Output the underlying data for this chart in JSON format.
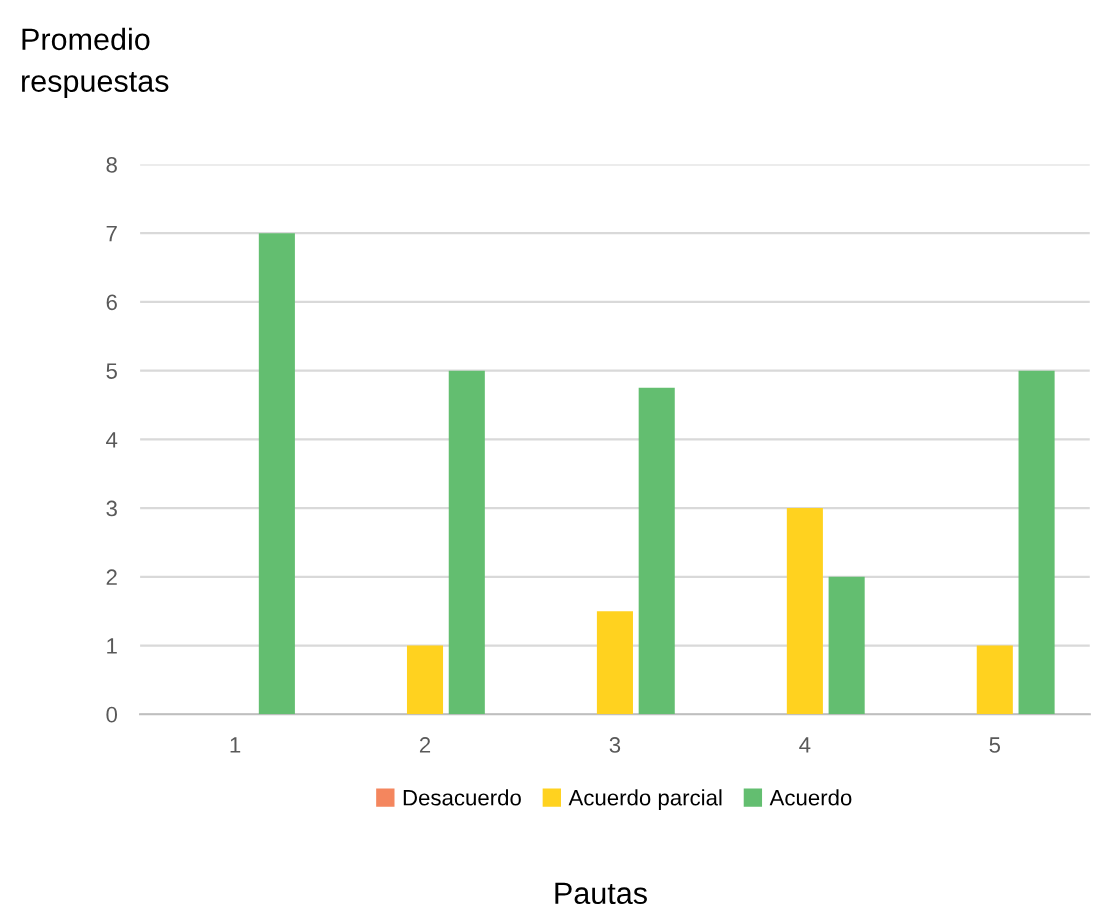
{
  "chart_data": {
    "type": "bar",
    "ylabel": "Promedio\nrespuestas",
    "xlabel": "Pautas",
    "categories": [
      "1",
      "2",
      "3",
      "4",
      "5"
    ],
    "series": [
      {
        "name": "Desacuerdo",
        "color": "#f4865e",
        "values": [
          0,
          0,
          0,
          0,
          0
        ]
      },
      {
        "name": "Acuerdo parcial",
        "color": "#ffd21f",
        "values": [
          0,
          1,
          1.5,
          3,
          1
        ]
      },
      {
        "name": "Acuerdo",
        "color": "#63be70",
        "values": [
          7,
          5,
          4.75,
          2,
          5
        ]
      }
    ],
    "ylim": [
      0,
      8
    ],
    "yticks": [
      0,
      1,
      2,
      3,
      4,
      5,
      6,
      7,
      8
    ],
    "grid": "y",
    "legend": "bottom"
  }
}
